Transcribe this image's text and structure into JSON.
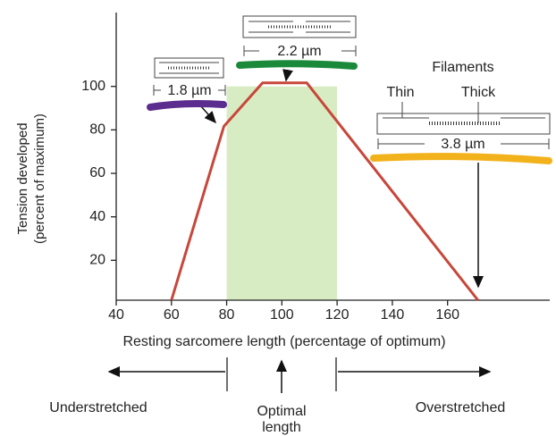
{
  "chart_data": {
    "type": "line",
    "x": [
      60,
      79,
      93,
      109,
      171
    ],
    "series": [
      {
        "color": "#c8463a",
        "values": [
          0,
          80,
          100,
          100,
          0
        ]
      }
    ],
    "xlim": [
      40,
      197
    ],
    "ylim": [
      0,
      134
    ],
    "xticks": [
      40,
      60,
      80,
      100,
      120,
      140,
      160
    ],
    "yticks": [
      20,
      40,
      60,
      80,
      100
    ],
    "shaded_range": [
      80,
      120
    ],
    "shaded_color": "#d8ecc4",
    "x_label": "Resting sarcomere length (percentage of optimum)",
    "y_label": [
      "Tension developed",
      "(percent of maximum)"
    ],
    "sarcomere_labels": [
      "1.8 µm",
      "2.2 µm",
      "3.8 µm"
    ],
    "filaments_title": "Filaments",
    "filament_labels": [
      "Thin",
      "Thick"
    ],
    "region_labels": [
      "Understretched",
      "Overstretched"
    ],
    "optimal_label": [
      "Optimal",
      "length"
    ]
  }
}
